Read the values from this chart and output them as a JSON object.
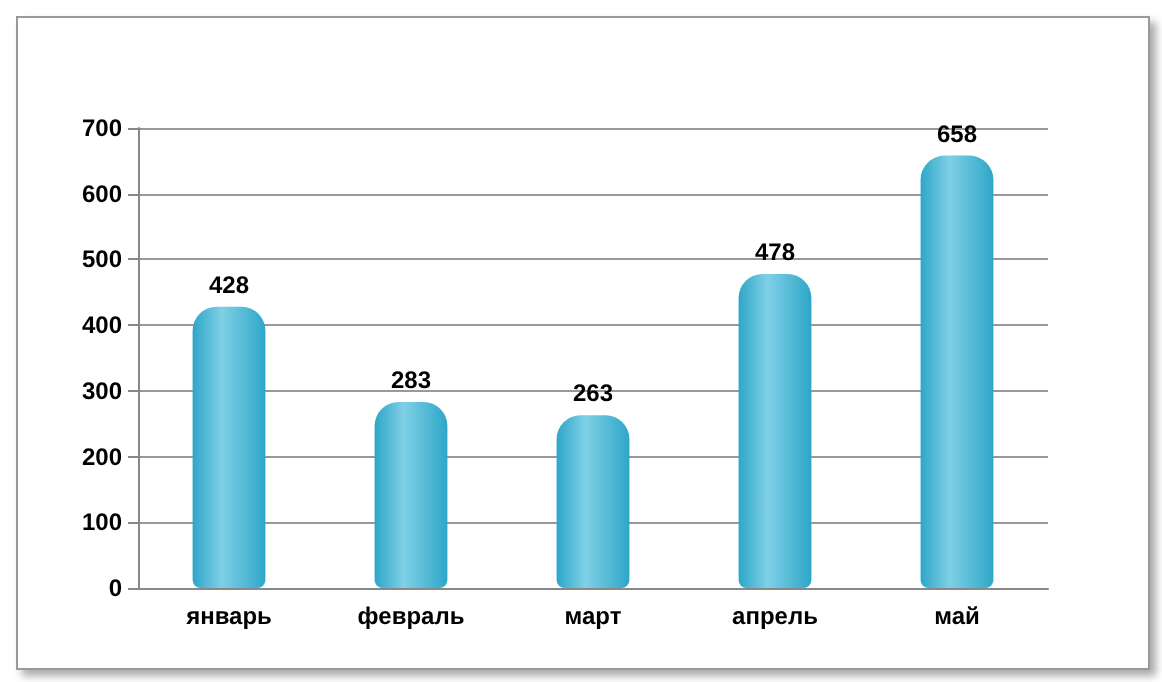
{
  "chart_data": {
    "type": "bar",
    "categories": [
      "январь",
      "февраль",
      "март",
      "апрель",
      "май"
    ],
    "values": [
      428,
      283,
      263,
      478,
      658
    ],
    "color": "#2ea6c8",
    "ylim": [
      0,
      700
    ],
    "yticks": [
      0,
      100,
      200,
      300,
      400,
      500,
      600,
      700
    ],
    "grid": "y",
    "data_labels": true
  }
}
